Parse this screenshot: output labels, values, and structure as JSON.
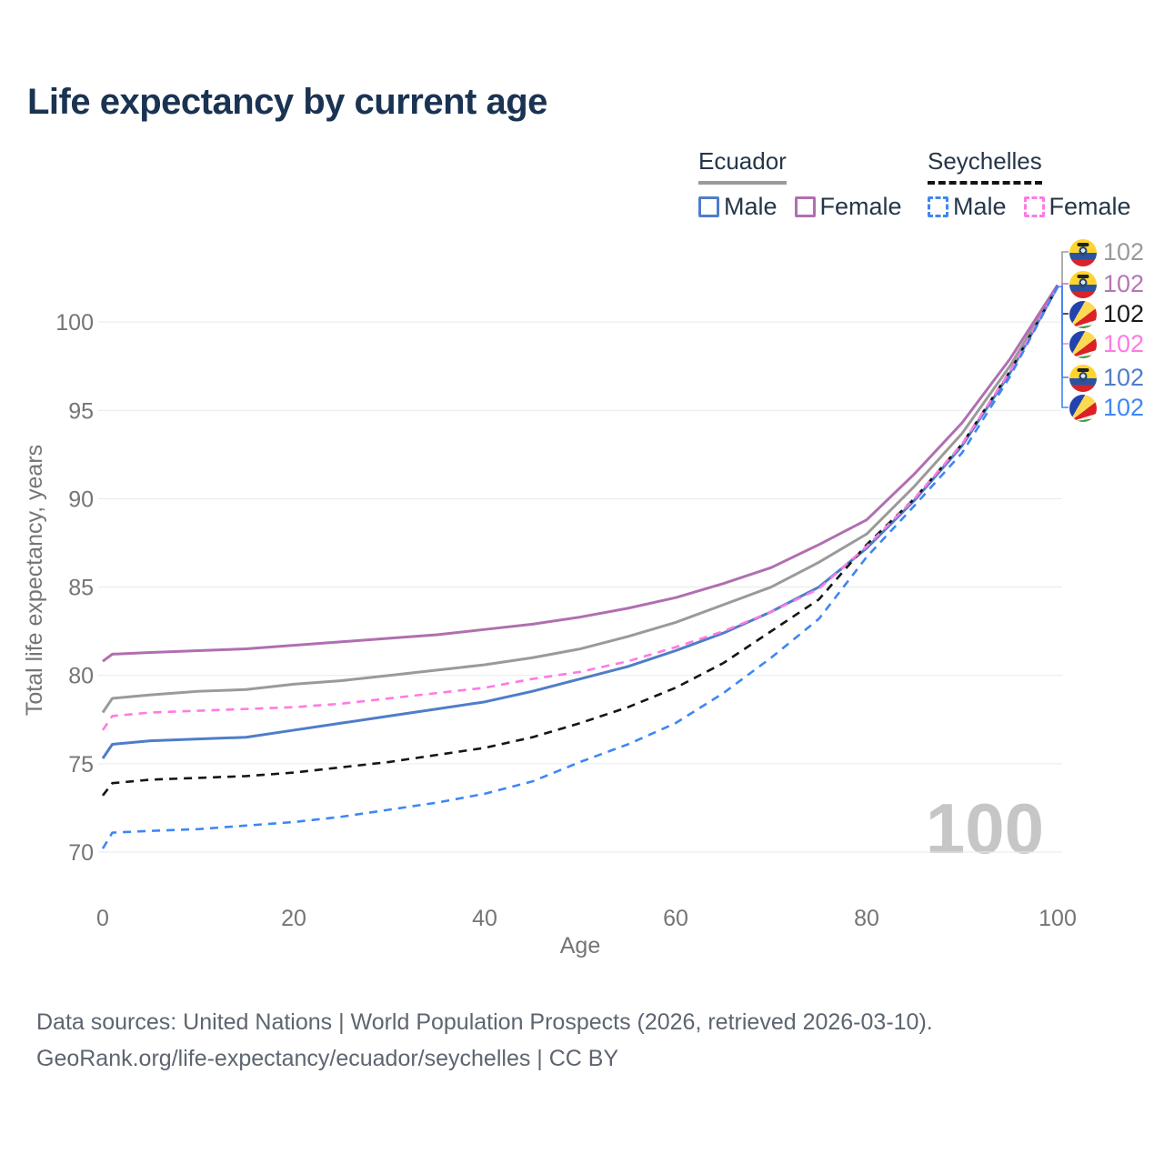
{
  "title": "Life expectancy by current age",
  "legend": {
    "groups": [
      {
        "label": "Ecuador",
        "line_style": "solid",
        "underline_color": "#9a9a9a",
        "items": [
          {
            "label": "Male",
            "color": "#4f7dc9"
          },
          {
            "label": "Female",
            "color": "#b06fb0"
          }
        ]
      },
      {
        "label": "Seychelles",
        "line_style": "dashed",
        "underline_color": "#141414",
        "items": [
          {
            "label": "Male",
            "color": "#3d87f5"
          },
          {
            "label": "Female",
            "color": "#ff7ae3"
          }
        ]
      }
    ]
  },
  "chart_data": {
    "type": "line",
    "title": "Life expectancy by current age",
    "xlabel": "Age",
    "ylabel": "Total life expectancy, years",
    "xlim": [
      0,
      100
    ],
    "ylim": [
      69.5,
      102.5
    ],
    "x_ticks": [
      0,
      20,
      40,
      60,
      80,
      100
    ],
    "y_ticks": [
      70,
      75,
      80,
      85,
      90,
      95,
      100
    ],
    "grid": "horizontal-only",
    "legend_position": "top-right",
    "hover_age_watermark": "100",
    "x": [
      0,
      1,
      5,
      10,
      15,
      20,
      25,
      30,
      35,
      40,
      45,
      50,
      55,
      60,
      65,
      70,
      75,
      80,
      85,
      90,
      95,
      100
    ],
    "series": [
      {
        "name": "Ecuador Both sexes",
        "country": "Ecuador",
        "sex": "Both",
        "color": "#9a9a9a",
        "dash": "solid",
        "end_value": 102,
        "values": [
          77.9,
          78.7,
          78.9,
          79.1,
          79.2,
          79.5,
          79.7,
          80.0,
          80.3,
          80.6,
          81.0,
          81.5,
          82.2,
          83.0,
          84.0,
          85.0,
          86.4,
          88.0,
          90.7,
          93.7,
          97.5,
          102.0
        ]
      },
      {
        "name": "Ecuador Female",
        "country": "Ecuador",
        "sex": "Female",
        "color": "#b06fb0",
        "dash": "solid",
        "end_value": 102,
        "values": [
          80.8,
          81.2,
          81.3,
          81.4,
          81.5,
          81.7,
          81.9,
          82.1,
          82.3,
          82.6,
          82.9,
          83.3,
          83.8,
          84.4,
          85.2,
          86.1,
          87.4,
          88.8,
          91.4,
          94.3,
          97.9,
          102.1
        ]
      },
      {
        "name": "Ecuador Male",
        "country": "Ecuador",
        "sex": "Male",
        "color": "#4f7dc9",
        "dash": "solid",
        "end_value": 102,
        "values": [
          75.3,
          76.1,
          76.3,
          76.4,
          76.5,
          76.9,
          77.3,
          77.7,
          78.1,
          78.5,
          79.1,
          79.8,
          80.5,
          81.4,
          82.4,
          83.6,
          85.0,
          87.2,
          89.9,
          93.0,
          97.1,
          102.0
        ]
      },
      {
        "name": "Seychelles Both sexes",
        "country": "Seychelles",
        "sex": "Both",
        "color": "#151515",
        "dash": "dashed",
        "end_value": 102,
        "values": [
          73.2,
          73.9,
          74.1,
          74.2,
          74.3,
          74.5,
          74.8,
          75.1,
          75.5,
          75.9,
          76.5,
          77.3,
          78.2,
          79.3,
          80.7,
          82.5,
          84.3,
          87.4,
          90.0,
          93.1,
          97.2,
          102.0
        ]
      },
      {
        "name": "Seychelles Female",
        "country": "Seychelles",
        "sex": "Female",
        "color": "#ff7ae3",
        "dash": "dashed",
        "end_value": 102,
        "values": [
          76.9,
          77.7,
          77.9,
          78.0,
          78.1,
          78.2,
          78.4,
          78.7,
          79.0,
          79.3,
          79.8,
          80.2,
          80.8,
          81.6,
          82.5,
          83.6,
          84.9,
          87.3,
          90.0,
          93.1,
          97.2,
          102.0
        ]
      },
      {
        "name": "Seychelles Male",
        "country": "Seychelles",
        "sex": "Male",
        "color": "#3d87f5",
        "dash": "dashed",
        "end_value": 102,
        "values": [
          70.2,
          71.1,
          71.2,
          71.3,
          71.5,
          71.7,
          72.0,
          72.4,
          72.8,
          73.3,
          74.0,
          75.1,
          76.1,
          77.3,
          79.0,
          81.0,
          83.2,
          86.7,
          89.6,
          92.6,
          96.9,
          102.0
        ]
      }
    ]
  },
  "end_labels": [
    {
      "flag": "ecuador",
      "value": "102",
      "color": "#9a9a9a"
    },
    {
      "flag": "ecuador",
      "value": "102",
      "color": "#b576b5"
    },
    {
      "flag": "seychelles",
      "value": "102",
      "color": "#1a1a1a"
    },
    {
      "flag": "seychelles",
      "value": "102",
      "color": "#ff7ae3"
    },
    {
      "flag": "ecuador",
      "value": "102",
      "color": "#4f7dc9"
    },
    {
      "flag": "seychelles",
      "value": "102",
      "color": "#3d87f5"
    }
  ],
  "watermark": "100",
  "footer": {
    "line1": "Data sources: United Nations | World Population Prospects (2026, retrieved 2026-03-10).",
    "line2": "GeoRank.org/life-expectancy/ecuador/seychelles | CC BY"
  }
}
